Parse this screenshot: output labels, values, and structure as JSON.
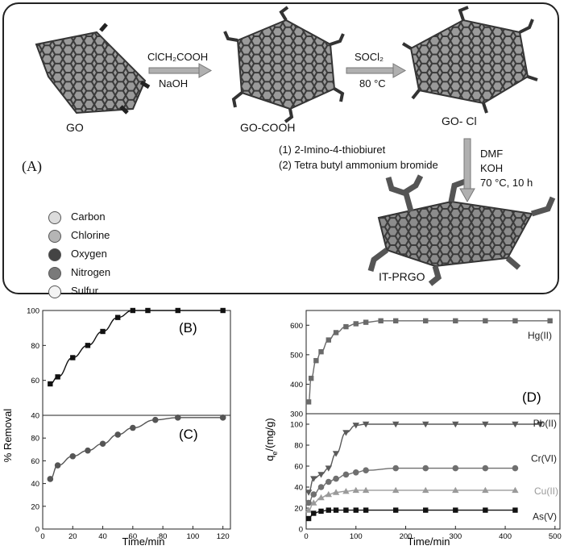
{
  "panel_a": {
    "label": "(A)",
    "molecules": {
      "go": "GO",
      "go_cooh": "GO-COOH",
      "go_cl": "GO- Cl",
      "it_prgo": "IT-PRGO"
    },
    "step1": {
      "reagent": "ClCH₂COOH",
      "base": "NaOH"
    },
    "step2": {
      "reagent": "SOCl₂",
      "temp": "80 °C"
    },
    "step3": {
      "reagent1": "(1)  2-Imino-4-thiobiuret",
      "reagent2": "(2)  Tetra butyl ammonium bromide",
      "solvent": "DMF",
      "base": "KOH",
      "conditions": "70 °C, 10 h"
    },
    "legend": [
      {
        "label": "Carbon",
        "color": "#dcdcdc"
      },
      {
        "label": "Chlorine",
        "color": "#b5b5b5"
      },
      {
        "label": "Oxygen",
        "color": "#444444"
      },
      {
        "label": "Nitrogen",
        "color": "#7a7a7a"
      },
      {
        "label": "Sulfur",
        "color": "#f4f4f4"
      }
    ]
  },
  "chart_data": [
    {
      "id": "B",
      "panel_label": "(B)",
      "type": "line",
      "x": [
        5,
        10,
        20,
        30,
        40,
        50,
        60,
        70,
        90,
        120
      ],
      "y": [
        58,
        62,
        73,
        80,
        88,
        96,
        100,
        100,
        100,
        100
      ],
      "xlim": [
        0,
        125
      ],
      "ylim": [
        40,
        100
      ],
      "yticks": [
        40,
        60,
        80,
        100
      ],
      "marker": "square",
      "color": "#111111"
    },
    {
      "id": "C",
      "panel_label": "(C)",
      "type": "line",
      "x": [
        5,
        10,
        20,
        30,
        40,
        50,
        60,
        75,
        90,
        120
      ],
      "y": [
        44,
        56,
        64,
        69,
        75,
        83,
        89,
        96,
        98,
        98
      ],
      "xlim": [
        0,
        125
      ],
      "ylim": [
        0,
        100
      ],
      "yticks": [
        0,
        20,
        40,
        60,
        80,
        100
      ],
      "xticks": [
        0,
        20,
        40,
        60,
        80,
        100,
        120
      ],
      "marker": "circle",
      "color": "#555555"
    },
    {
      "id": "D_upper",
      "panel_label": "(D)",
      "type": "line",
      "xlim": [
        0,
        510
      ],
      "ylim": [
        300,
        650
      ],
      "yticks": [
        300,
        400,
        500,
        600
      ],
      "series": [
        {
          "name": "Hg(II)",
          "marker": "square",
          "color": "#6a6a6a",
          "x": [
            5,
            10,
            20,
            30,
            45,
            60,
            80,
            100,
            120,
            150,
            180,
            240,
            300,
            360,
            420,
            490
          ],
          "y": [
            340,
            420,
            480,
            510,
            550,
            575,
            595,
            605,
            610,
            615,
            615,
            615,
            615,
            615,
            615,
            615
          ]
        }
      ]
    },
    {
      "id": "D_lower",
      "type": "line",
      "xlim": [
        0,
        510
      ],
      "ylim": [
        0,
        110
      ],
      "yticks": [
        0,
        20,
        40,
        60,
        80,
        100
      ],
      "xticks": [
        0,
        100,
        200,
        300,
        400,
        500
      ],
      "series": [
        {
          "name": "Pb(II)",
          "marker": "triangle-down",
          "color": "#5a5a5a",
          "x": [
            5,
            15,
            30,
            45,
            60,
            80,
            100,
            120,
            180,
            240,
            300,
            360,
            420,
            470
          ],
          "y": [
            35,
            48,
            52,
            58,
            72,
            92,
            99,
            100,
            100,
            100,
            100,
            100,
            100,
            100
          ]
        },
        {
          "name": "Cr(VI)",
          "marker": "circle",
          "color": "#6f6f6f",
          "x": [
            5,
            15,
            30,
            45,
            60,
            80,
            100,
            120,
            180,
            240,
            300,
            360,
            420
          ],
          "y": [
            25,
            33,
            40,
            45,
            48,
            52,
            54,
            56,
            58,
            58,
            58,
            58,
            58
          ]
        },
        {
          "name": "Cu(II)",
          "marker": "triangle-up",
          "color": "#9a9a9a",
          "x": [
            5,
            15,
            30,
            45,
            60,
            80,
            100,
            120,
            180,
            240,
            300,
            360,
            420
          ],
          "y": [
            18,
            25,
            30,
            33,
            35,
            36,
            37,
            37,
            37,
            37,
            37,
            37,
            37
          ]
        },
        {
          "name": "As(V)",
          "marker": "square",
          "color": "#111111",
          "x": [
            5,
            15,
            30,
            45,
            60,
            80,
            100,
            120,
            180,
            240,
            300,
            360,
            420
          ],
          "y": [
            10,
            15,
            17,
            18,
            18,
            18,
            18,
            18,
            18,
            18,
            18,
            18,
            18
          ]
        }
      ]
    }
  ],
  "axes": {
    "left_ylabel": "% Removal",
    "left_xlabel": "Time/min",
    "right_ylabel": "q",
    "right_ylabel_sub": "e",
    "right_ylabel_unit": "/(mg/g)",
    "right_xlabel": "Time/min"
  }
}
